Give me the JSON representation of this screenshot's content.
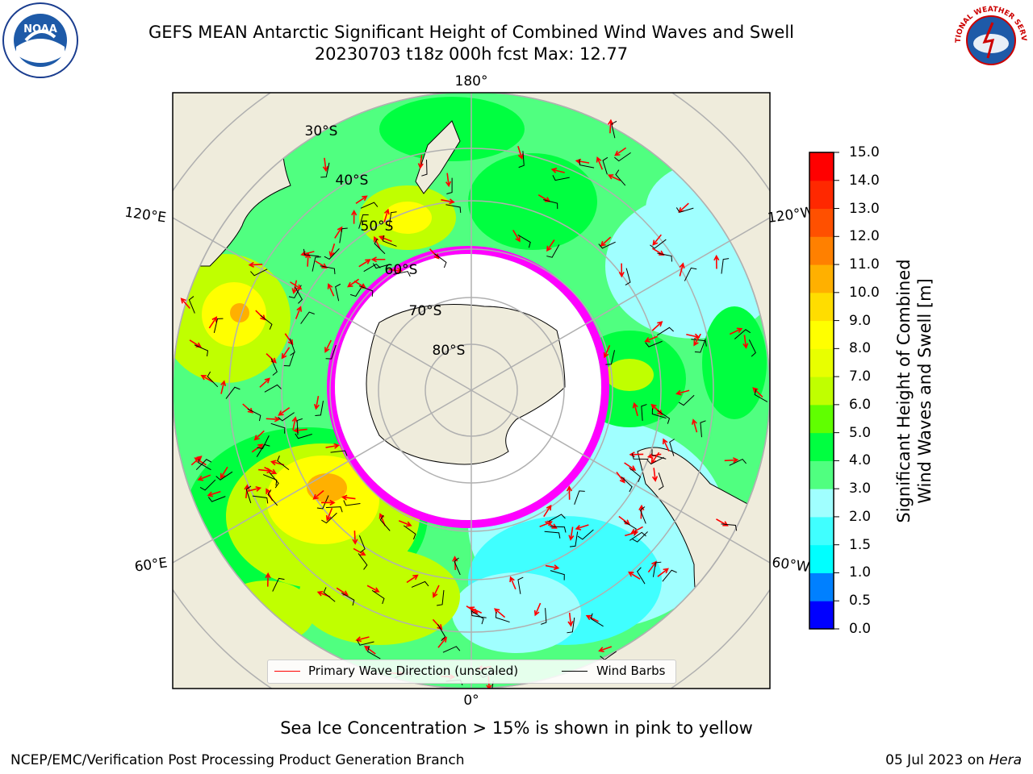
{
  "header": {
    "title_line1": "GEFS MEAN Antarctic Significant Height of Combined Wind Waves and Swell",
    "title_line2": "20230703 t18z 000h fcst   Max: 12.77"
  },
  "logos": {
    "left": "NOAA",
    "right": "NATIONAL WEATHER SERVICE"
  },
  "map": {
    "longitude_labels": {
      "top": "180°",
      "upper_left": "120°E",
      "upper_right": "120°W",
      "lower_left": "60°E",
      "lower_right": "60°W",
      "bottom": "0°"
    },
    "latitude_labels": [
      "30°S",
      "40°S",
      "50°S",
      "60°S",
      "70°S",
      "80°S"
    ],
    "colors": {
      "land": "#efecdc",
      "ocean_background": "#ffffff",
      "ice": "#ffffff",
      "graticule": "#b0b0b0",
      "wave_arrow": "#ff0000",
      "wind_barb": "#000000"
    }
  },
  "legend": {
    "primary_wave_direction": "Primary Wave Direction (unscaled)",
    "wind_barbs": "Wind Barbs",
    "wave_color": "#ff0000",
    "barb_color": "#000000"
  },
  "colorbar": {
    "label_line1": "Significant Height of Combined",
    "label_line2": "Wind Waves and Swell [m]",
    "ticks": [
      "0.0",
      "0.5",
      "1.0",
      "1.5",
      "2.0",
      "3.0",
      "4.0",
      "5.0",
      "6.0",
      "7.0",
      "8.0",
      "9.0",
      "10.0",
      "11.0",
      "12.0",
      "13.0",
      "14.0",
      "15.0"
    ],
    "colors": [
      "#0000ff",
      "#0080ff",
      "#00ffff",
      "#40ffff",
      "#a0ffff",
      "#50ff80",
      "#00ff40",
      "#60ff00",
      "#c0ff00",
      "#e8ff00",
      "#ffff00",
      "#ffdd00",
      "#ffb000",
      "#ff8000",
      "#ff5000",
      "#ff2800",
      "#ff0000"
    ]
  },
  "notes": {
    "sea_ice": "Sea Ice Concentration > 15% is shown in pink to yellow",
    "footer_left": "NCEP/EMC/Verification Post Processing Product Generation Branch",
    "footer_right_date": "05 Jul 2023 on",
    "footer_right_host": "Hera"
  }
}
